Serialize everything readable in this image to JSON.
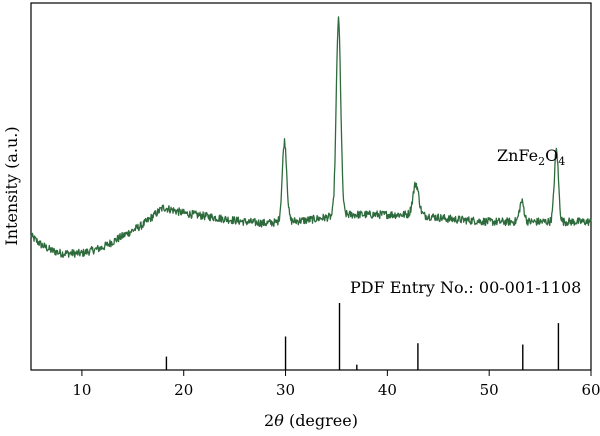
{
  "chart_data": {
    "type": "line",
    "xlabel_prefix": "2",
    "xlabel_symbol": "θ",
    "xlabel_suffix": " (degree)",
    "ylabel": "Intensity (a.u.)",
    "xlim": [
      5,
      60
    ],
    "xticks": [
      10,
      20,
      30,
      40,
      50,
      60
    ],
    "grid": false,
    "legend": "none",
    "series_color": "#2e6b3c",
    "pattern_color": "#000000",
    "compound_label": {
      "base1": "ZnFe",
      "sub1": "2",
      "base2": "O",
      "sub2": "4"
    },
    "reference_label": "PDF Entry No.: 00-001-1108",
    "baseline_points": [
      [
        5,
        0.24
      ],
      [
        6,
        0.21
      ],
      [
        7,
        0.19
      ],
      [
        8,
        0.18
      ],
      [
        10,
        0.18
      ],
      [
        12,
        0.2
      ],
      [
        14,
        0.24
      ],
      [
        16,
        0.28
      ],
      [
        17,
        0.31
      ],
      [
        18,
        0.34
      ],
      [
        19,
        0.33
      ],
      [
        20,
        0.32
      ],
      [
        22,
        0.31
      ],
      [
        24,
        0.3
      ],
      [
        26,
        0.29
      ],
      [
        28,
        0.285
      ],
      [
        30,
        0.29
      ],
      [
        32,
        0.295
      ],
      [
        34,
        0.305
      ],
      [
        36,
        0.315
      ],
      [
        38,
        0.315
      ],
      [
        40,
        0.315
      ],
      [
        42,
        0.315
      ],
      [
        44,
        0.31
      ],
      [
        46,
        0.3
      ],
      [
        48,
        0.295
      ],
      [
        50,
        0.29
      ],
      [
        52,
        0.29
      ],
      [
        54,
        0.29
      ],
      [
        56,
        0.29
      ],
      [
        58,
        0.29
      ],
      [
        60,
        0.29
      ]
    ],
    "peaks": [
      {
        "x": 29.9,
        "height": 0.28,
        "width": 0.22
      },
      {
        "x": 35.2,
        "height": 0.68,
        "width": 0.22
      },
      {
        "x": 42.8,
        "height": 0.11,
        "width": 0.28
      },
      {
        "x": 53.2,
        "height": 0.07,
        "width": 0.22
      },
      {
        "x": 56.6,
        "height": 0.25,
        "width": 0.2
      }
    ],
    "noise_amplitude": 0.014,
    "reference_lines": [
      {
        "x": 18.3,
        "intensity": 0.2
      },
      {
        "x": 30.0,
        "intensity": 0.5
      },
      {
        "x": 35.3,
        "intensity": 1.0
      },
      {
        "x": 37.0,
        "intensity": 0.08
      },
      {
        "x": 43.0,
        "intensity": 0.4
      },
      {
        "x": 53.3,
        "intensity": 0.38
      },
      {
        "x": 56.8,
        "intensity": 0.7
      }
    ]
  }
}
